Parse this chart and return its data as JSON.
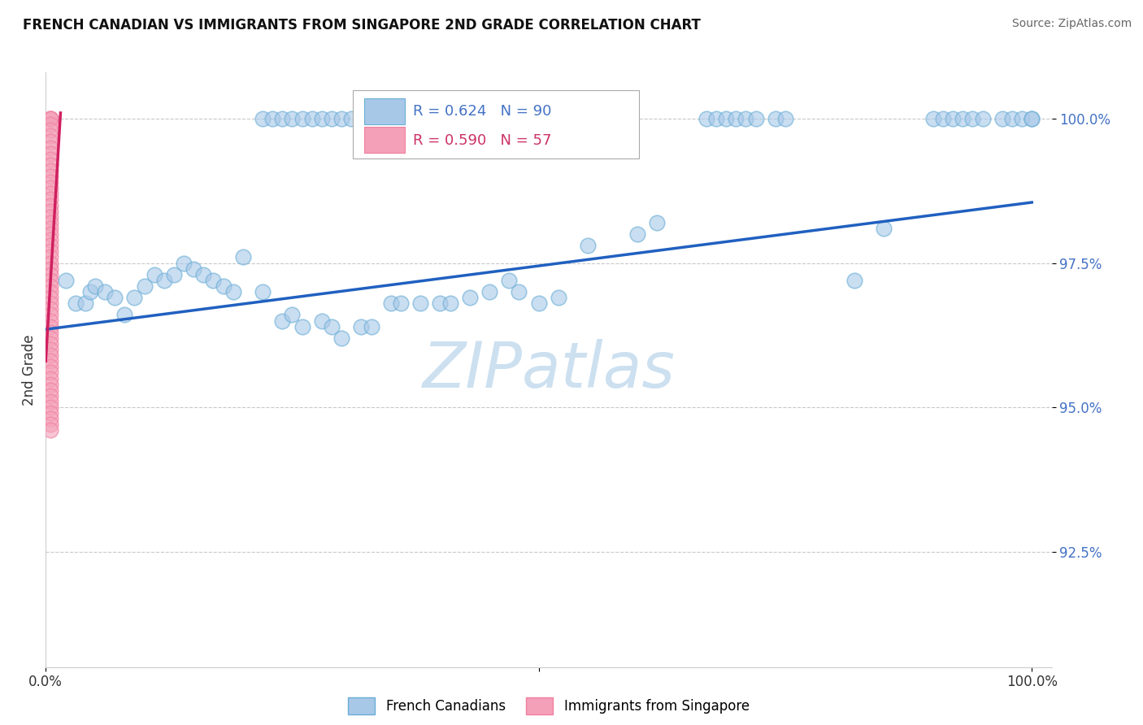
{
  "title": "FRENCH CANADIAN VS IMMIGRANTS FROM SINGAPORE 2ND GRADE CORRELATION CHART",
  "source": "Source: ZipAtlas.com",
  "ylabel": "2nd Grade",
  "xlim": [
    0.0,
    1.02
  ],
  "ylim": [
    0.905,
    1.008
  ],
  "yticks": [
    0.925,
    0.95,
    0.975,
    1.0
  ],
  "ytick_labels": [
    "92.5%",
    "95.0%",
    "97.5%",
    "100.0%"
  ],
  "blue_R": 0.624,
  "blue_N": 90,
  "pink_R": 0.59,
  "pink_N": 57,
  "blue_color": "#6aaed6",
  "pink_color": "#f080a0",
  "blue_face_color": "#a8c8e8",
  "pink_face_color": "#f4a0b8",
  "blue_line_color": "#2060c0",
  "pink_line_color": "#d02060",
  "ytick_color": "#4472c4",
  "grid_color": "#bbbbbb",
  "legend_fc_blue": "#a8c8e8",
  "legend_fc_pink": "#f4a0b8",
  "legend_ec_blue": "#6aaed6",
  "legend_ec_pink": "#f080a0",
  "watermark_color": "#cce0f0",
  "blue_line_x0": 0.0,
  "blue_line_x1": 1.0,
  "blue_line_y0": 0.9635,
  "blue_line_y1": 0.9855,
  "pink_line_x0": 0.0,
  "pink_line_x1": 0.015,
  "pink_line_y0": 0.958,
  "pink_line_y1": 1.001,
  "blue_scatter_x": [
    0.02,
    0.03,
    0.04,
    0.045,
    0.05,
    0.06,
    0.07,
    0.08,
    0.09,
    0.1,
    0.11,
    0.12,
    0.13,
    0.14,
    0.15,
    0.16,
    0.17,
    0.18,
    0.19,
    0.2,
    0.22,
    0.24,
    0.25,
    0.26,
    0.28,
    0.29,
    0.3,
    0.32,
    0.33,
    0.35,
    0.36,
    0.38,
    0.4,
    0.41,
    0.43,
    0.45,
    0.47,
    0.48,
    0.5,
    0.52,
    0.22,
    0.23,
    0.24,
    0.25,
    0.26,
    0.27,
    0.28,
    0.29,
    0.3,
    0.31,
    0.32,
    0.33,
    0.34,
    0.35,
    0.36,
    0.37,
    0.38,
    0.39,
    0.4,
    0.41,
    0.42,
    0.43,
    0.44,
    0.45,
    0.46,
    0.47,
    0.67,
    0.68,
    0.69,
    0.7,
    0.71,
    0.72,
    0.74,
    0.75,
    0.55,
    0.6,
    0.62,
    0.82,
    0.85,
    0.9,
    0.91,
    0.92,
    0.93,
    0.94,
    0.95,
    0.97,
    0.98,
    0.99,
    1.0,
    1.0
  ],
  "blue_scatter_y": [
    0.972,
    0.968,
    0.968,
    0.97,
    0.971,
    0.97,
    0.969,
    0.966,
    0.969,
    0.971,
    0.973,
    0.972,
    0.973,
    0.975,
    0.974,
    0.973,
    0.972,
    0.971,
    0.97,
    0.976,
    0.97,
    0.965,
    0.966,
    0.964,
    0.965,
    0.964,
    0.962,
    0.964,
    0.964,
    0.968,
    0.968,
    0.968,
    0.968,
    0.968,
    0.969,
    0.97,
    0.972,
    0.97,
    0.968,
    0.969,
    1.0,
    1.0,
    1.0,
    1.0,
    1.0,
    1.0,
    1.0,
    1.0,
    1.0,
    1.0,
    1.0,
    1.0,
    1.0,
    1.0,
    1.0,
    1.0,
    1.0,
    1.0,
    1.0,
    1.0,
    1.0,
    1.0,
    1.0,
    1.0,
    1.0,
    1.0,
    1.0,
    1.0,
    1.0,
    1.0,
    1.0,
    1.0,
    1.0,
    1.0,
    0.978,
    0.98,
    0.982,
    0.972,
    0.981,
    1.0,
    1.0,
    1.0,
    1.0,
    1.0,
    1.0,
    1.0,
    1.0,
    1.0,
    1.0,
    1.0
  ],
  "pink_scatter_x": [
    0.005,
    0.005,
    0.005,
    0.005,
    0.005,
    0.005,
    0.005,
    0.005,
    0.005,
    0.005,
    0.005,
    0.005,
    0.005,
    0.005,
    0.005,
    0.005,
    0.005,
    0.005,
    0.005,
    0.005,
    0.005,
    0.005,
    0.005,
    0.005,
    0.005,
    0.005,
    0.005,
    0.005,
    0.005,
    0.005,
    0.005,
    0.005,
    0.005,
    0.005,
    0.005,
    0.005,
    0.005,
    0.005,
    0.005,
    0.005,
    0.005,
    0.005,
    0.005,
    0.005,
    0.005,
    0.005,
    0.005,
    0.005,
    0.005,
    0.005,
    0.005,
    0.005,
    0.005,
    0.005,
    0.005,
    0.005,
    0.005
  ],
  "pink_scatter_y": [
    1.0,
    1.0,
    1.0,
    0.999,
    0.998,
    0.997,
    0.996,
    0.995,
    0.994,
    0.993,
    0.992,
    0.991,
    0.99,
    0.989,
    0.988,
    0.987,
    0.986,
    0.985,
    0.984,
    0.983,
    0.982,
    0.981,
    0.98,
    0.979,
    0.978,
    0.977,
    0.976,
    0.975,
    0.974,
    0.973,
    0.972,
    0.971,
    0.97,
    0.969,
    0.968,
    0.967,
    0.966,
    0.965,
    0.964,
    0.963,
    0.962,
    0.961,
    0.96,
    0.959,
    0.958,
    0.957,
    0.956,
    0.955,
    0.954,
    0.953,
    0.952,
    0.951,
    0.95,
    0.949,
    0.948,
    0.947,
    0.946
  ]
}
